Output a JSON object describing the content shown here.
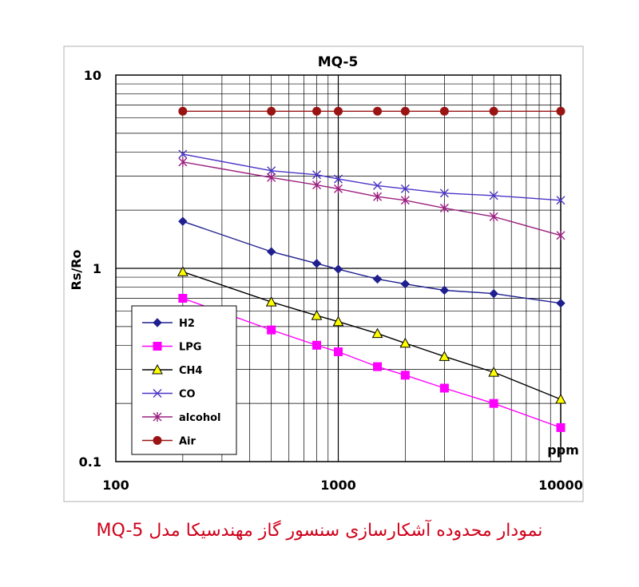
{
  "caption": "نمودار محدوده آشکارسازی سنسور گاز مهندسیکا مدل MQ-5",
  "chart_data": {
    "type": "line",
    "title": "MQ-5",
    "xlabel": "ppm",
    "ylabel": "Rs/Ro",
    "xscale": "log",
    "yscale": "log",
    "xlim": [
      100,
      10000
    ],
    "ylim": [
      0.1,
      10
    ],
    "x_ticks": [
      "100",
      "1000",
      "10000"
    ],
    "y_ticks": [
      "10",
      "1",
      "0.1"
    ],
    "grid": true,
    "legend_position": "bottom-left",
    "series": [
      {
        "name": "H2",
        "color": "#1f1f8f",
        "marker": "diamond",
        "x": [
          200,
          500,
          800,
          1000,
          1500,
          2000,
          3000,
          5000,
          10000
        ],
        "y": [
          1.75,
          1.22,
          1.06,
          0.99,
          0.88,
          0.83,
          0.77,
          0.74,
          0.66
        ]
      },
      {
        "name": "LPG",
        "color": "#ff00ff",
        "marker": "square",
        "x": [
          200,
          500,
          800,
          1000,
          1500,
          2000,
          3000,
          5000,
          10000
        ],
        "y": [
          0.7,
          0.48,
          0.4,
          0.37,
          0.31,
          0.28,
          0.24,
          0.2,
          0.15
        ]
      },
      {
        "name": "CH4",
        "color": "#000000",
        "marker": "triangle",
        "x": [
          200,
          500,
          800,
          1000,
          1500,
          2000,
          3000,
          5000,
          10000
        ],
        "y": [
          0.96,
          0.67,
          0.57,
          0.53,
          0.46,
          0.41,
          0.35,
          0.29,
          0.21
        ]
      },
      {
        "name": "CO",
        "color": "#4b35c8",
        "marker": "x",
        "x": [
          200,
          500,
          800,
          1000,
          1500,
          2000,
          3000,
          5000,
          10000
        ],
        "y": [
          3.9,
          3.2,
          3.05,
          2.9,
          2.68,
          2.58,
          2.45,
          2.38,
          2.25
        ]
      },
      {
        "name": "alcohol",
        "color": "#9b1f7f",
        "marker": "asterisk",
        "x": [
          200,
          500,
          800,
          1000,
          1500,
          2000,
          3000,
          5000,
          10000
        ],
        "y": [
          3.55,
          2.95,
          2.7,
          2.58,
          2.35,
          2.25,
          2.05,
          1.85,
          1.48
        ]
      },
      {
        "name": "Air",
        "color": "#9a1414",
        "marker": "circle",
        "x": [
          200,
          500,
          800,
          1000,
          1500,
          2000,
          3000,
          5000,
          10000
        ],
        "y": [
          6.5,
          6.5,
          6.5,
          6.5,
          6.5,
          6.5,
          6.5,
          6.5,
          6.5
        ]
      }
    ]
  }
}
